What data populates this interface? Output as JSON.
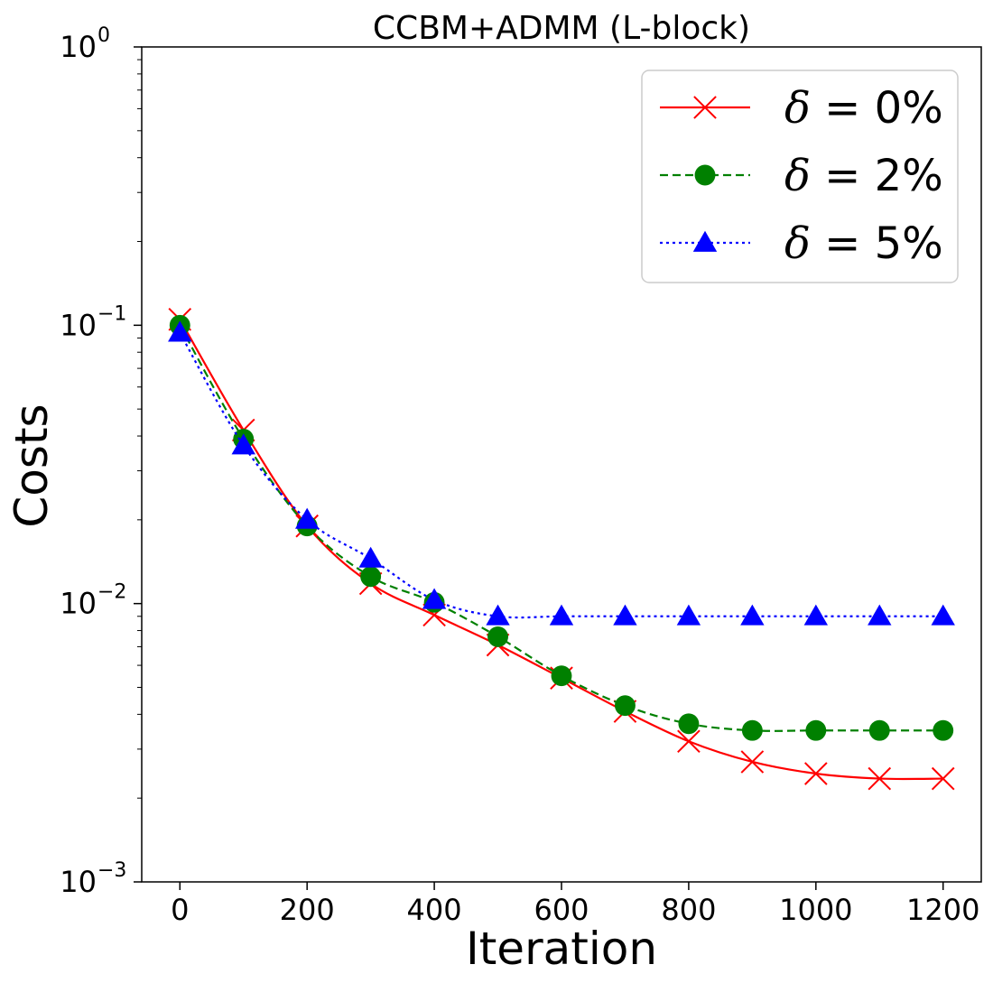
{
  "chart_data": {
    "type": "line",
    "title": "CCBM+ADMM (L-block)",
    "xlabel": "Iteration",
    "ylabel": "Costs",
    "yscale": "log",
    "xlim": [
      -60,
      1260
    ],
    "ylim": [
      0.001,
      1
    ],
    "x": [
      0,
      100,
      200,
      300,
      400,
      500,
      600,
      700,
      800,
      900,
      1000,
      1100,
      1200
    ],
    "x_ticks": [
      "0",
      "200",
      "400",
      "600",
      "800",
      "1000",
      "1200"
    ],
    "y_ticks": [
      {
        "base": "10",
        "exp": "0",
        "value": 1
      },
      {
        "base": "10",
        "exp": "−1",
        "value": 0.1
      },
      {
        "base": "10",
        "exp": "−2",
        "value": 0.01
      },
      {
        "base": "10",
        "exp": "−3",
        "value": 0.001
      }
    ],
    "legend_position": "top-right",
    "series": [
      {
        "name": "δ = 0%",
        "symbol": "δ",
        "label_rest": " = 0%",
        "color": "#ff0000",
        "marker": "x",
        "linestyle": "solid",
        "values": [
          0.105,
          0.042,
          0.019,
          0.0118,
          0.0091,
          0.0071,
          0.0054,
          0.0041,
          0.0032,
          0.0027,
          0.00245,
          0.00235,
          0.00235
        ]
      },
      {
        "name": "δ = 2%",
        "symbol": "δ",
        "label_rest": " = 2%",
        "color": "#008000",
        "marker": "circle",
        "linestyle": "dashed",
        "values": [
          0.1,
          0.039,
          0.019,
          0.0125,
          0.0101,
          0.0076,
          0.0055,
          0.0043,
          0.0037,
          0.0035,
          0.0035,
          0.0035,
          0.0035
        ]
      },
      {
        "name": "δ = 5%",
        "symbol": "δ",
        "label_rest": " = 5%",
        "color": "#0000ff",
        "marker": "triangle",
        "linestyle": "dotted",
        "values": [
          0.094,
          0.037,
          0.02,
          0.0145,
          0.0103,
          0.009,
          0.009,
          0.009,
          0.009,
          0.009,
          0.009,
          0.009,
          0.009
        ]
      }
    ]
  }
}
